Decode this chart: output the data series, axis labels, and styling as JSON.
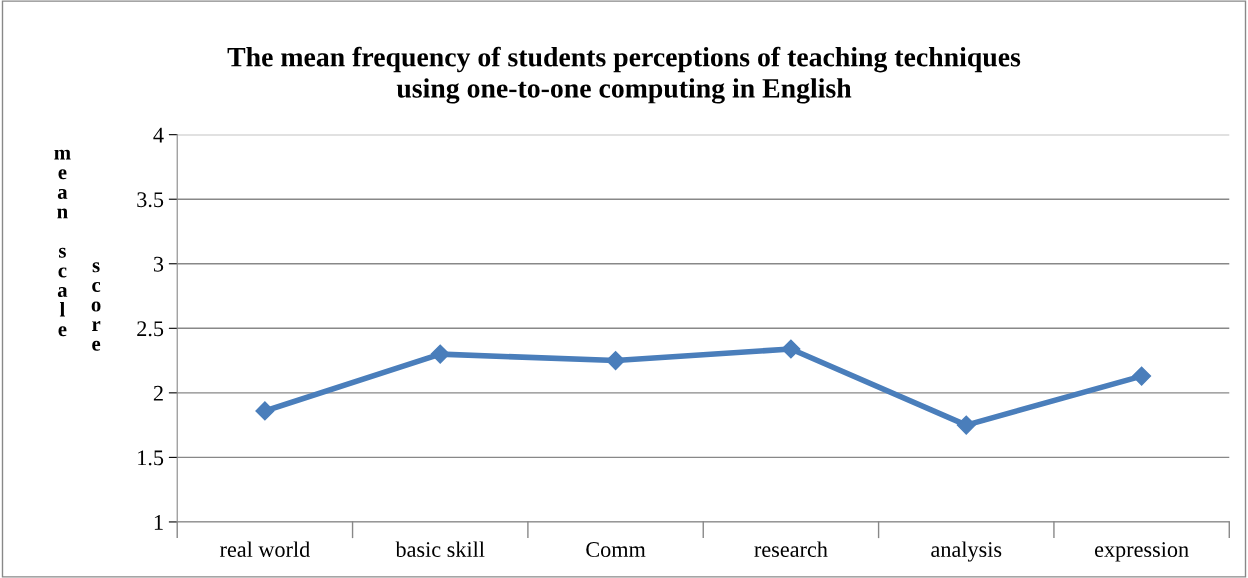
{
  "chart_data": {
    "type": "line",
    "title": "The mean frequency of students perceptions of teaching techniques\nusing one-to-one computing in English",
    "ylabel": "mean scale score",
    "categories": [
      "real world",
      "basic skill",
      "Comm",
      "research",
      "analysis",
      "expression"
    ],
    "series": [
      {
        "color": "#4a7ebb",
        "values": [
          1.86,
          2.3,
          2.25,
          2.34,
          1.75,
          2.13
        ]
      }
    ],
    "ylim": [
      1,
      4
    ],
    "yticks": [
      1,
      1.5,
      2,
      2.5,
      3,
      3.5,
      4
    ],
    "grid": "y",
    "marker": "diamond",
    "line_style": "solid"
  }
}
